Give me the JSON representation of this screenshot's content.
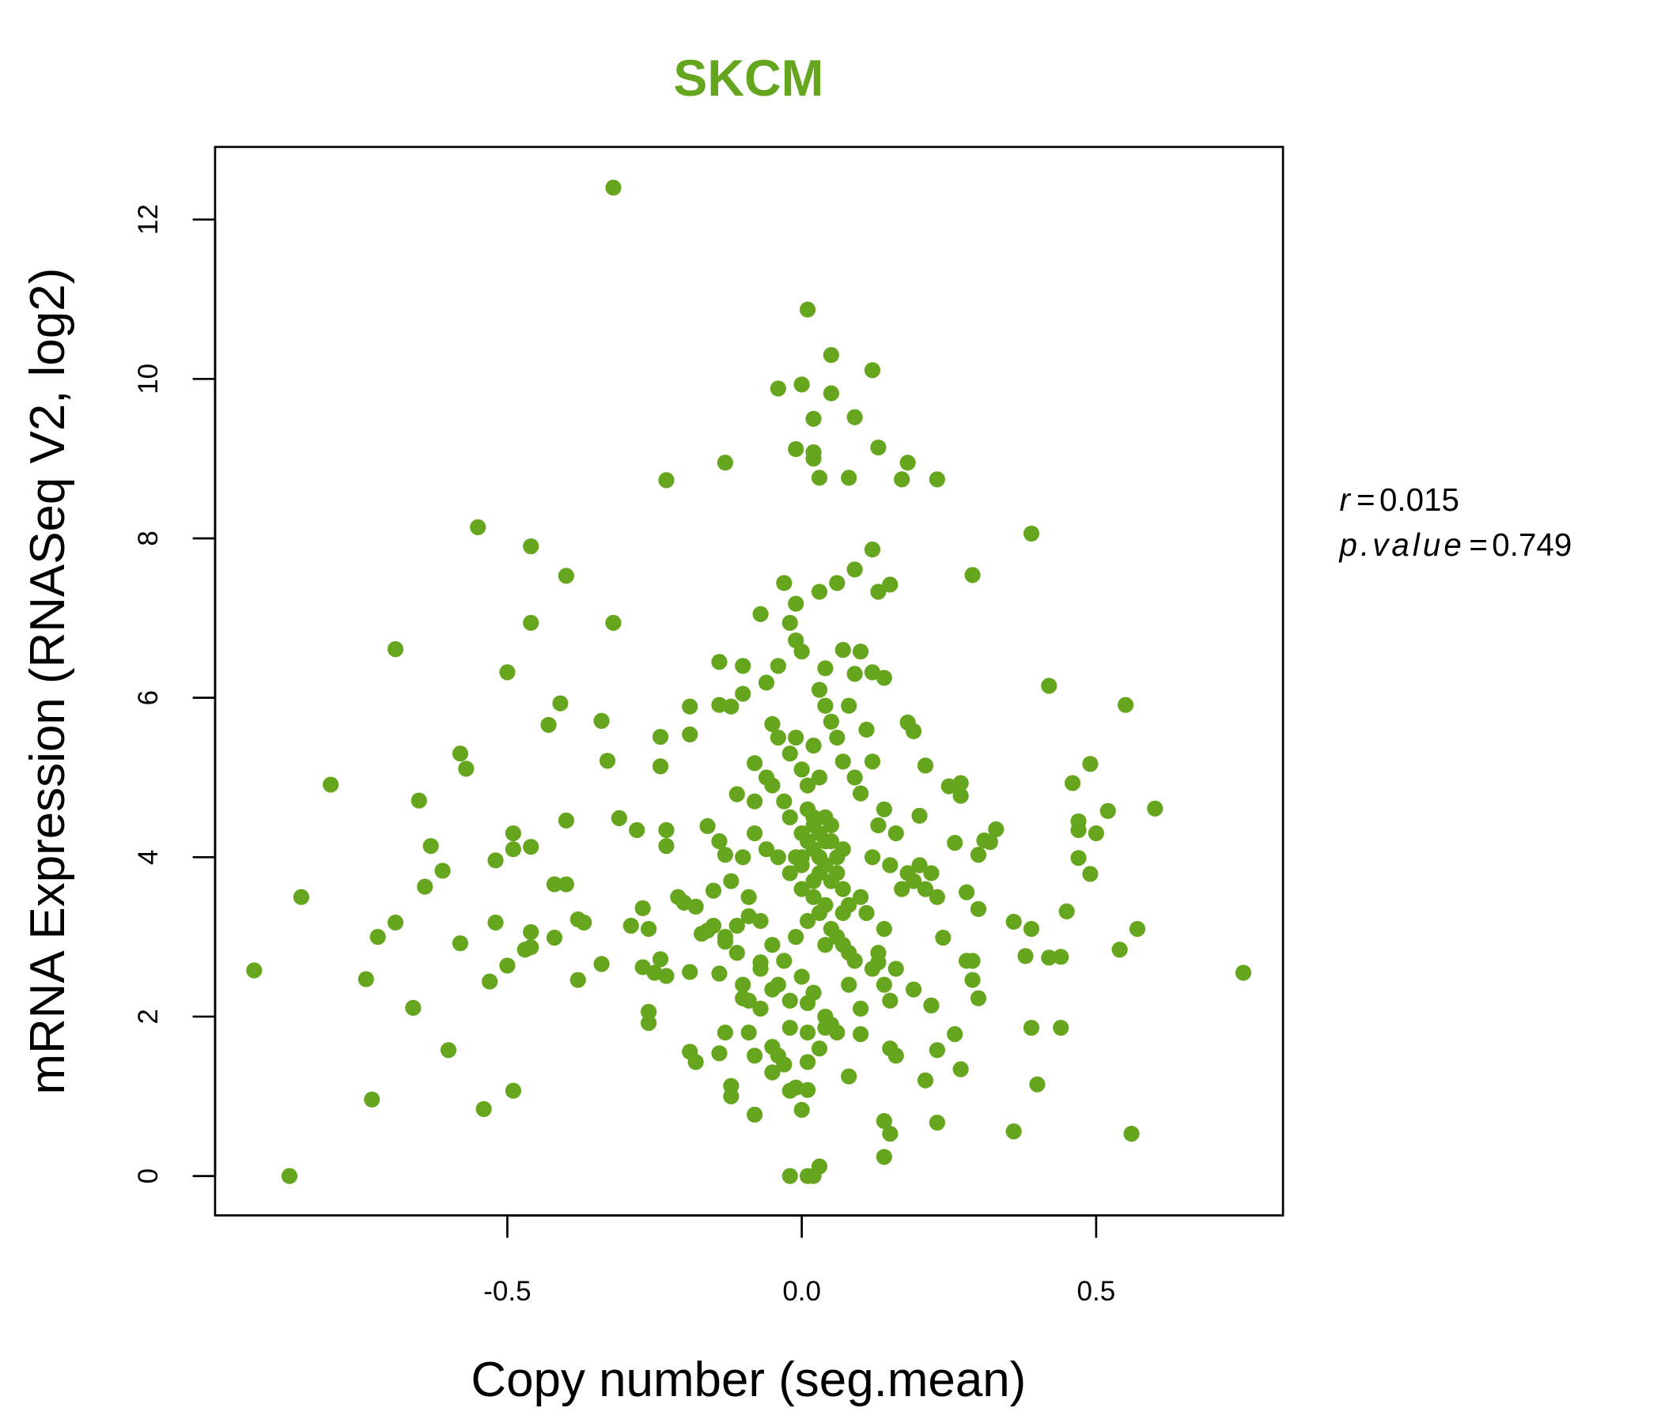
{
  "chart_data": {
    "type": "scatter",
    "title": "SKCM",
    "xlabel": "Copy number (seg.mean)",
    "ylabel": "mRNA Expression (RNASeq V2, log2)",
    "xlim": [
      -0.97,
      0.81
    ],
    "ylim": [
      -0.5,
      12.9
    ],
    "xticks": [
      {
        "v": -0.5,
        "label": "-0.5"
      },
      {
        "v": 0,
        "label": "0.0"
      },
      {
        "v": 0.5,
        "label": "0.5"
      }
    ],
    "yticks": [
      {
        "v": 0,
        "label": "0"
      },
      {
        "v": 2,
        "label": "2"
      },
      {
        "v": 4,
        "label": "4"
      },
      {
        "v": 6,
        "label": "6"
      },
      {
        "v": 8,
        "label": "8"
      },
      {
        "v": 10,
        "label": "10"
      },
      {
        "v": 12,
        "label": "12"
      }
    ],
    "grid": false,
    "annotations": {
      "r_label": "r",
      "r_value": "0.015",
      "p_label": "p.value",
      "p_value": "0.749",
      "eq": "="
    },
    "colors": {
      "title": "#66a61e",
      "points": "#66a61e"
    },
    "points": [
      [
        -0.93,
        2.58
      ],
      [
        -0.87,
        0
      ],
      [
        -0.85,
        3.5
      ],
      [
        -0.8,
        4.91
      ],
      [
        -0.73,
        0.96
      ],
      [
        -0.74,
        2.47
      ],
      [
        -0.72,
        3.0
      ],
      [
        -0.69,
        3.18
      ],
      [
        -0.69,
        6.61
      ],
      [
        -0.66,
        2.11
      ],
      [
        -0.65,
        4.71
      ],
      [
        -0.64,
        3.63
      ],
      [
        -0.63,
        4.14
      ],
      [
        -0.61,
        3.83
      ],
      [
        -0.6,
        1.58
      ],
      [
        -0.58,
        2.92
      ],
      [
        -0.58,
        5.3
      ],
      [
        -0.57,
        5.11
      ],
      [
        -0.55,
        8.14
      ],
      [
        -0.54,
        0.84
      ],
      [
        -0.53,
        2.44
      ],
      [
        -0.52,
        3.18
      ],
      [
        -0.52,
        3.96
      ],
      [
        -0.5,
        2.64
      ],
      [
        -0.5,
        6.32
      ],
      [
        -0.49,
        1.07
      ],
      [
        -0.49,
        4.3
      ],
      [
        -0.49,
        4.1
      ],
      [
        -0.47,
        2.84
      ],
      [
        -0.46,
        4.13
      ],
      [
        -0.46,
        7.9
      ],
      [
        -0.46,
        6.94
      ],
      [
        -0.46,
        3.06
      ],
      [
        -0.46,
        2.87
      ],
      [
        -0.42,
        2.99
      ],
      [
        -0.43,
        5.66
      ],
      [
        -0.42,
        3.66
      ],
      [
        -0.41,
        5.93
      ],
      [
        -0.4,
        4.46
      ],
      [
        -0.4,
        3.66
      ],
      [
        -0.4,
        7.53
      ],
      [
        -0.38,
        3.22
      ],
      [
        -0.38,
        2.46
      ],
      [
        -0.37,
        3.18
      ],
      [
        -0.34,
        5.71
      ],
      [
        -0.34,
        2.66
      ],
      [
        -0.33,
        5.21
      ],
      [
        -0.32,
        6.94
      ],
      [
        -0.32,
        12.4
      ],
      [
        -0.31,
        4.49
      ],
      [
        -0.29,
        3.14
      ],
      [
        -0.28,
        4.34
      ],
      [
        -0.27,
        2.62
      ],
      [
        -0.27,
        3.36
      ],
      [
        -0.26,
        3.1
      ],
      [
        -0.26,
        2.06
      ],
      [
        -0.26,
        1.92
      ],
      [
        -0.25,
        2.55
      ],
      [
        -0.24,
        5.51
      ],
      [
        -0.24,
        2.72
      ],
      [
        -0.24,
        5.14
      ],
      [
        -0.23,
        8.73
      ],
      [
        -0.23,
        4.34
      ],
      [
        -0.23,
        2.51
      ],
      [
        -0.23,
        4.14
      ],
      [
        -0.21,
        3.5
      ],
      [
        -0.2,
        3.43
      ],
      [
        -0.19,
        1.56
      ],
      [
        -0.19,
        5.54
      ],
      [
        -0.19,
        2.56
      ],
      [
        -0.19,
        5.89
      ],
      [
        -0.18,
        3.38
      ],
      [
        -0.18,
        1.43
      ],
      [
        -0.17,
        3.04
      ],
      [
        -0.16,
        3.08
      ],
      [
        -0.16,
        4.39
      ],
      [
        -0.15,
        3.58
      ],
      [
        -0.15,
        3.14
      ],
      [
        -0.14,
        1.54
      ],
      [
        -0.14,
        2.54
      ],
      [
        -0.14,
        5.91
      ],
      [
        -0.14,
        6.45
      ],
      [
        -0.13,
        4.03
      ],
      [
        -0.13,
        1.8
      ],
      [
        -0.13,
        2.94
      ],
      [
        -0.13,
        8.95
      ],
      [
        -0.12,
        1.13
      ],
      [
        -0.12,
        1.0
      ],
      [
        -0.12,
        5.89
      ],
      [
        -0.11,
        3.14
      ],
      [
        -0.11,
        4.79
      ],
      [
        -0.1,
        2.23
      ],
      [
        -0.1,
        6.05
      ],
      [
        -0.1,
        6.4
      ],
      [
        -0.09,
        1.8
      ],
      [
        -0.09,
        3.26
      ],
      [
        -0.08,
        0.77
      ],
      [
        -0.08,
        5.18
      ],
      [
        -0.08,
        1.51
      ],
      [
        -0.07,
        2.1
      ],
      [
        -0.07,
        7.05
      ],
      [
        -0.07,
        2.68
      ],
      [
        -0.06,
        6.19
      ],
      [
        -0.05,
        2.34
      ],
      [
        -0.05,
        1.62
      ],
      [
        -0.05,
        5.67
      ],
      [
        -0.04,
        6.4
      ],
      [
        -0.04,
        9.88
      ],
      [
        -0.04,
        1.51
      ],
      [
        -0.03,
        1.4
      ],
      [
        -0.03,
        7.44
      ],
      [
        -0.02,
        1.86
      ],
      [
        -0.02,
        0
      ],
      [
        -0.02,
        1.07
      ],
      [
        -0.02,
        6.94
      ],
      [
        -0.01,
        1.11
      ],
      [
        -0.01,
        7.18
      ],
      [
        -0.01,
        6.72
      ],
      [
        -0.01,
        9.12
      ],
      [
        0.0,
        9.93
      ],
      [
        0.0,
        0.83
      ],
      [
        0.0,
        6.58
      ],
      [
        0.01,
        2.17
      ],
      [
        0.01,
        1.08
      ],
      [
        0.01,
        1.43
      ],
      [
        0.01,
        0
      ],
      [
        0.01,
        10.87
      ],
      [
        0.02,
        9.08
      ],
      [
        0.02,
        9.0
      ],
      [
        0.02,
        9.5
      ],
      [
        0.02,
        0
      ],
      [
        0.03,
        0.12
      ],
      [
        0.03,
        8.76
      ],
      [
        0.03,
        7.33
      ],
      [
        0.04,
        1.86
      ],
      [
        0.04,
        6.37
      ],
      [
        0.05,
        10.3
      ],
      [
        0.05,
        9.82
      ],
      [
        0.06,
        7.44
      ],
      [
        0.07,
        6.6
      ],
      [
        0.08,
        8.76
      ],
      [
        0.08,
        1.25
      ],
      [
        0.09,
        9.52
      ],
      [
        0.09,
        7.61
      ],
      [
        0.1,
        1.78
      ],
      [
        0.1,
        6.58
      ],
      [
        0.12,
        10.11
      ],
      [
        0.12,
        7.86
      ],
      [
        0.12,
        6.32
      ],
      [
        0.13,
        2.68
      ],
      [
        0.13,
        9.14
      ],
      [
        0.13,
        7.33
      ],
      [
        0.14,
        0.69
      ],
      [
        0.14,
        0.24
      ],
      [
        0.14,
        6.25
      ],
      [
        0.15,
        0.53
      ],
      [
        0.15,
        7.42
      ],
      [
        0.15,
        1.6
      ],
      [
        0.16,
        1.51
      ],
      [
        0.17,
        8.74
      ],
      [
        0.18,
        8.95
      ],
      [
        0.18,
        5.69
      ],
      [
        0.19,
        2.34
      ],
      [
        0.19,
        5.58
      ],
      [
        0.2,
        4.52
      ],
      [
        0.21,
        5.15
      ],
      [
        0.21,
        1.2
      ],
      [
        0.22,
        2.14
      ],
      [
        0.23,
        8.74
      ],
      [
        0.23,
        0.67
      ],
      [
        0.23,
        1.58
      ],
      [
        0.24,
        2.99
      ],
      [
        0.25,
        4.89
      ],
      [
        0.26,
        1.78
      ],
      [
        0.26,
        4.18
      ],
      [
        0.27,
        4.93
      ],
      [
        0.27,
        1.34
      ],
      [
        0.27,
        4.77
      ],
      [
        0.28,
        3.56
      ],
      [
        0.28,
        2.7
      ],
      [
        0.29,
        7.54
      ],
      [
        0.29,
        2.46
      ],
      [
        0.29,
        2.7
      ],
      [
        0.3,
        3.35
      ],
      [
        0.3,
        4.03
      ],
      [
        0.3,
        2.23
      ],
      [
        0.31,
        4.21
      ],
      [
        0.32,
        4.19
      ],
      [
        0.33,
        4.35
      ],
      [
        0.36,
        3.19
      ],
      [
        0.36,
        0.56
      ],
      [
        0.38,
        2.76
      ],
      [
        0.39,
        3.1
      ],
      [
        0.39,
        1.86
      ],
      [
        0.39,
        8.06
      ],
      [
        0.4,
        1.15
      ],
      [
        0.42,
        2.74
      ],
      [
        0.42,
        6.15
      ],
      [
        0.44,
        2.75
      ],
      [
        0.44,
        1.86
      ],
      [
        0.45,
        3.32
      ],
      [
        0.46,
        4.93
      ],
      [
        0.47,
        4.34
      ],
      [
        0.47,
        4.45
      ],
      [
        0.47,
        3.99
      ],
      [
        0.49,
        5.17
      ],
      [
        0.49,
        3.79
      ],
      [
        0.5,
        4.3
      ],
      [
        0.52,
        4.58
      ],
      [
        0.54,
        2.84
      ],
      [
        0.55,
        5.91
      ],
      [
        0.56,
        0.53
      ],
      [
        0.57,
        3.1
      ],
      [
        0.6,
        4.61
      ],
      [
        0.75,
        2.55
      ],
      [
        -0.05,
        4.9
      ],
      [
        -0.03,
        4.7
      ],
      [
        -0.02,
        4.5
      ],
      [
        0,
        4.3
      ],
      [
        0.01,
        4.2
      ],
      [
        0.02,
        4.1
      ],
      [
        0.03,
        4.0
      ],
      [
        0.04,
        3.9
      ],
      [
        0.05,
        4.4
      ],
      [
        0.06,
        3.8
      ],
      [
        0.0,
        3.9
      ],
      [
        0.01,
        4.6
      ],
      [
        0.02,
        4.4
      ],
      [
        0.03,
        4.3
      ],
      [
        -0.01,
        4.0
      ],
      [
        0.04,
        4.2
      ],
      [
        0.05,
        3.7
      ],
      [
        0.07,
        3.6
      ],
      [
        0.08,
        3.4
      ],
      [
        0.1,
        3.5
      ],
      [
        0.11,
        3.3
      ],
      [
        0.06,
        3.0
      ],
      [
        0.07,
        2.9
      ],
      [
        0.08,
        2.8
      ],
      [
        0.09,
        2.7
      ],
      [
        0.05,
        3.1
      ],
      [
        0.04,
        2.9
      ],
      [
        0.03,
        3.3
      ],
      [
        0.02,
        3.5
      ],
      [
        0.0,
        3.6
      ],
      [
        -0.02,
        3.8
      ],
      [
        -0.04,
        4.0
      ],
      [
        -0.06,
        4.1
      ],
      [
        -0.08,
        4.3
      ],
      [
        -0.1,
        4.0
      ],
      [
        -0.12,
        3.7
      ],
      [
        -0.09,
        3.5
      ],
      [
        -0.07,
        3.2
      ],
      [
        -0.05,
        2.9
      ],
      [
        -0.03,
        2.7
      ],
      [
        -0.01,
        3.0
      ],
      [
        0.01,
        3.2
      ],
      [
        0.12,
        4.0
      ],
      [
        0.13,
        4.4
      ],
      [
        0.14,
        4.6
      ],
      [
        0.15,
        3.9
      ],
      [
        0.16,
        4.3
      ],
      [
        0.17,
        3.6
      ],
      [
        0.18,
        3.8
      ],
      [
        0.19,
        3.7
      ],
      [
        0.2,
        3.9
      ],
      [
        0.21,
        3.6
      ],
      [
        0.22,
        3.8
      ],
      [
        0.23,
        3.5
      ],
      [
        0.1,
        4.8
      ],
      [
        0.09,
        5.0
      ],
      [
        0.07,
        5.2
      ],
      [
        0.06,
        5.5
      ],
      [
        0.05,
        5.7
      ],
      [
        0.04,
        5.9
      ],
      [
        0.03,
        6.1
      ],
      [
        0.02,
        5.4
      ],
      [
        0.0,
        5.1
      ],
      [
        -0.02,
        5.3
      ],
      [
        -0.04,
        5.5
      ],
      [
        -0.06,
        5.0
      ],
      [
        -0.08,
        4.7
      ],
      [
        0.11,
        5.6
      ],
      [
        0.12,
        5.2
      ],
      [
        0.08,
        5.9
      ],
      [
        0.09,
        6.3
      ],
      [
        -0.1,
        2.4
      ],
      [
        -0.09,
        2.2
      ],
      [
        -0.07,
        2.6
      ],
      [
        -0.04,
        2.4
      ],
      [
        -0.02,
        2.2
      ],
      [
        0.0,
        2.5
      ],
      [
        0.02,
        2.3
      ],
      [
        0.04,
        2.0
      ],
      [
        0.06,
        1.8
      ],
      [
        0.08,
        2.4
      ],
      [
        0.1,
        2.1
      ],
      [
        0.12,
        2.6
      ],
      [
        0.14,
        2.4
      ],
      [
        0.15,
        2.2
      ],
      [
        0.16,
        2.6
      ],
      [
        0.01,
        1.8
      ],
      [
        0.03,
        1.6
      ],
      [
        0.05,
        1.9
      ],
      [
        -0.05,
        1.3
      ],
      [
        0.14,
        3.1
      ],
      [
        0.13,
        2.8
      ],
      [
        -0.13,
        3.0
      ],
      [
        -0.11,
        2.8
      ],
      [
        -0.14,
        4.2
      ],
      [
        0.02,
        3.7
      ],
      [
        0.04,
        3.4
      ],
      [
        0.06,
        4.0
      ],
      [
        0.07,
        4.1
      ],
      [
        0.01,
        4.9
      ],
      [
        0.03,
        5.0
      ],
      [
        -0.01,
        5.5
      ],
      [
        0.0,
        4.0
      ],
      [
        0.02,
        4.5
      ],
      [
        0.03,
        3.8
      ],
      [
        0.04,
        4.5
      ],
      [
        0.05,
        4.2
      ],
      [
        0.07,
        3.3
      ]
    ]
  }
}
